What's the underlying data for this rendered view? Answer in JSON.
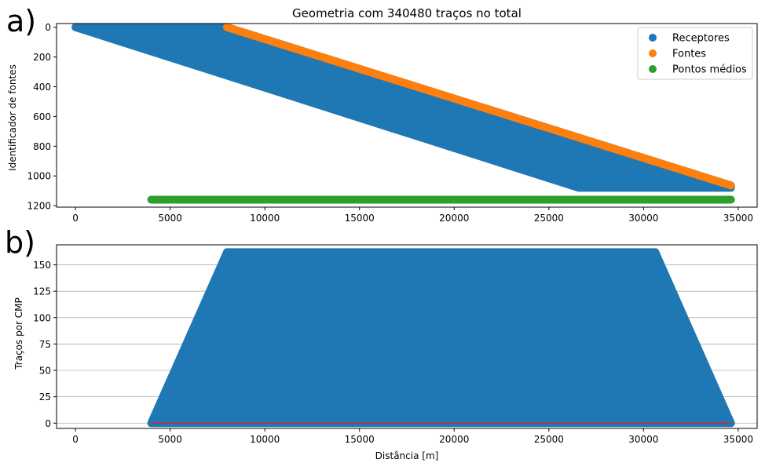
{
  "colors": {
    "receptores": "#1f77b4",
    "fontes": "#ff7f0e",
    "pontos_medios": "#2ca02c",
    "baseline": "#d62728",
    "grid": "#b0b0b0"
  },
  "panel_labels": {
    "a": "a)",
    "b": "b)"
  },
  "chart_data": [
    {
      "type": "scatter",
      "title": "Geometria com 340480 traços no total",
      "xlabel": "",
      "ylabel": "Identificador de fontes",
      "xlim": [
        -1000,
        36000
      ],
      "ylim": [
        1210,
        -25
      ],
      "y_inverted": true,
      "grid": false,
      "legend_placement": "top-right",
      "xticks": [
        0,
        5000,
        10000,
        15000,
        20000,
        25000,
        30000,
        35000
      ],
      "yticks": [
        0,
        200,
        400,
        600,
        800,
        1000,
        1200
      ],
      "series": [
        {
          "name": "Receptores",
          "color": "#1f77b4",
          "kind": "filled_region",
          "polygon": [
            [
              0,
              0
            ],
            [
              8000,
              0
            ],
            [
              34620,
              1064
            ],
            [
              34620,
              1080
            ],
            [
              26580,
              1080
            ],
            [
              0,
              0
            ]
          ]
        },
        {
          "name": "Fontes",
          "color": "#ff7f0e",
          "kind": "line_of_points",
          "x": [
            8000,
            34620
          ],
          "y": [
            0,
            1064
          ]
        },
        {
          "name": "Pontos médios",
          "color": "#2ca02c",
          "kind": "line_of_points",
          "x": [
            4000,
            34620
          ],
          "y": [
            1160,
            1160
          ]
        }
      ]
    },
    {
      "type": "scatter",
      "title": "",
      "xlabel": "Distância [m]",
      "ylabel": "Traços por CMP",
      "xlim": [
        -1000,
        36000
      ],
      "ylim": [
        -5,
        169
      ],
      "grid": true,
      "grid_axis": "y",
      "xticks": [
        0,
        5000,
        10000,
        15000,
        20000,
        25000,
        30000,
        35000
      ],
      "yticks": [
        0,
        25,
        50,
        75,
        100,
        125,
        150
      ],
      "series": [
        {
          "name": "",
          "color": "#1f77b4",
          "kind": "filled_region",
          "polygon": [
            [
              4000,
              0
            ],
            [
              8000,
              162
            ],
            [
              30620,
              162
            ],
            [
              34620,
              0
            ]
          ]
        },
        {
          "name": "",
          "color": "#d62728",
          "kind": "line",
          "x": [
            4000,
            34620
          ],
          "y": [
            0,
            0
          ]
        }
      ]
    }
  ]
}
